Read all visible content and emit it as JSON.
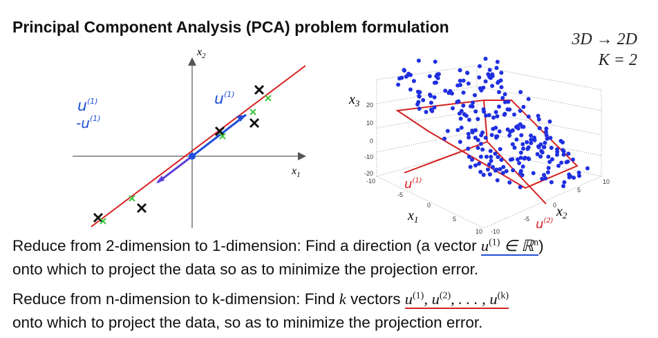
{
  "header": {
    "title": "Principal Component Analysis (PCA) problem formulation"
  },
  "corner": {
    "reduction": "3D → 2D",
    "k": "K = 2"
  },
  "left_plot": {
    "x_axis": {
      "base": "x",
      "sub": "1"
    },
    "y_axis": {
      "base": "x",
      "sub": "2"
    },
    "notes": [
      {
        "base": "u",
        "sup": "(1)"
      },
      {
        "base": "-u",
        "sup": "(1)"
      },
      {
        "base": "u",
        "sup": "(1)"
      }
    ]
  },
  "right_plot": {
    "z_axis": {
      "base": "x",
      "sub": "3"
    },
    "x_axis": {
      "base": "x",
      "sub": "1"
    },
    "y_axis": {
      "base": "x",
      "sub": "2"
    },
    "z_ticks": [
      "20",
      "10",
      "0",
      "-10",
      "-20"
    ],
    "x_ticks": [
      "-10",
      "-5",
      "0",
      "5",
      "10"
    ],
    "y_ticks": [
      "-10",
      "-5",
      "0",
      "5",
      "10"
    ],
    "notes": [
      {
        "base": "u",
        "sup": "(1)"
      },
      {
        "base": "u",
        "sup": "(2)"
      }
    ]
  },
  "body": {
    "lines": [
      [
        {
          "text": "Reduce from 2-dimension to 1-dimension: Find a direction (a vector"
        },
        {
          "math": "u",
          "sup": "(1)"
        },
        {
          "math": " ∈ ℝ",
          "sup": "n"
        },
        {
          "text": ")"
        }
      ],
      [
        {
          "text": "onto which to project the data so as to minimize the projection error."
        }
      ],
      [
        {
          "text": "Reduce from n-dimension to k-dimension: Find "
        },
        {
          "math": "k"
        },
        {
          "text": " vectors "
        },
        {
          "math": "u",
          "sup": "(1)"
        },
        {
          "math": ", u",
          "sup": "(2)"
        },
        {
          "math": ", . . . , u",
          "sup": "(k)"
        }
      ],
      [
        {
          "text": "onto which to project the data, so as to minimize the projection error."
        }
      ]
    ]
  }
}
